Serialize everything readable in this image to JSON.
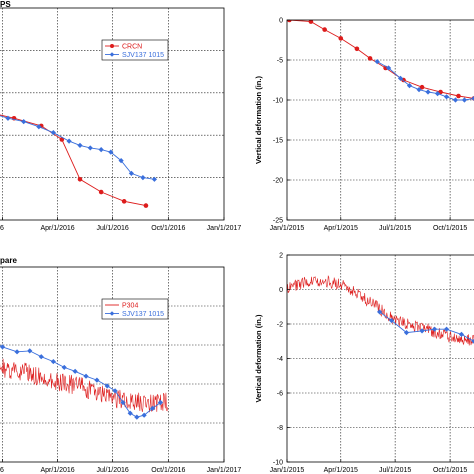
{
  "colors": {
    "red": "#dd1c1c",
    "blue": "#3a6fdc",
    "grid": "#1a1a1a",
    "axis": "#000000"
  },
  "chart_data": [
    {
      "id": "top-left",
      "type": "line",
      "panel_label": "PS",
      "ylabel": "",
      "xlabel": "",
      "xlim": [
        "2015-12-08",
        "2017-01-01"
      ],
      "ylim": [
        -25,
        0
      ],
      "xticks": [
        {
          "x": "2016-01-01",
          "label": "6"
        },
        {
          "x": "2016-04-01",
          "label": "Apr/1/2016"
        },
        {
          "x": "2016-07-01",
          "label": "Jul/1/2016"
        },
        {
          "x": "2016-10-01",
          "label": "Oct/1/2016"
        },
        {
          "x": "2017-01-01",
          "label": "Jan/1/2017"
        }
      ],
      "yticks": [
        0,
        -5,
        -10,
        -15,
        -20,
        -25
      ],
      "show_ytick_labels": false,
      "grid": true,
      "legend": {
        "placement": "top-center",
        "entries": [
          {
            "name": "CRCN",
            "color": "#dd1c1c",
            "marker": "circle"
          },
          {
            "name": "SJV137 1015",
            "color": "#3a6fdc",
            "marker": "diamond"
          }
        ]
      },
      "series": [
        {
          "name": "CRCN",
          "color": "#dd1c1c",
          "marker": "circle",
          "points": [
            [
              "2015-12-08",
              -12.3
            ],
            [
              "2016-01-20",
              -13.0
            ],
            [
              "2016-03-05",
              -13.9
            ],
            [
              "2016-04-08",
              -15.5
            ],
            [
              "2016-05-08",
              -20.2
            ],
            [
              "2016-06-12",
              -21.7
            ],
            [
              "2016-07-20",
              -22.8
            ],
            [
              "2016-08-25",
              -23.3
            ]
          ]
        },
        {
          "name": "SJV137 1015",
          "color": "#3a6fdc",
          "marker": "diamond",
          "points": [
            [
              "2015-12-08",
              -12.3
            ],
            [
              "2016-01-10",
              -13.0
            ],
            [
              "2016-02-05",
              -13.4
            ],
            [
              "2016-03-01",
              -14.0
            ],
            [
              "2016-03-25",
              -14.7
            ],
            [
              "2016-04-20",
              -15.7
            ],
            [
              "2016-05-08",
              -16.2
            ],
            [
              "2016-05-25",
              -16.5
            ],
            [
              "2016-06-12",
              -16.7
            ],
            [
              "2016-06-28",
              -17.0
            ],
            [
              "2016-07-15",
              -18.0
            ],
            [
              "2016-08-01",
              -19.5
            ],
            [
              "2016-08-20",
              -20.0
            ],
            [
              "2016-09-08",
              -20.2
            ]
          ]
        }
      ]
    },
    {
      "id": "top-right",
      "type": "line",
      "panel_label": "",
      "ylabel": "Vertical deformation (in.)",
      "xlabel": "",
      "xlim": [
        "2015-01-01",
        "2015-11-15"
      ],
      "ylim": [
        -25,
        0
      ],
      "xticks": [
        {
          "x": "2015-01-01",
          "label": "Jan/1/2015"
        },
        {
          "x": "2015-04-01",
          "label": "Apr/1/2015"
        },
        {
          "x": "2015-07-01",
          "label": "Jul/1/2015"
        },
        {
          "x": "2015-10-01",
          "label": "Oct/1/2015"
        }
      ],
      "yticks": [
        0,
        -5,
        -10,
        -15,
        -20,
        -25
      ],
      "show_ytick_labels": true,
      "grid": true,
      "legend": null,
      "series": [
        {
          "name": "",
          "color": "#dd1c1c",
          "marker": "circle",
          "points": [
            [
              "2015-01-05",
              0.0
            ],
            [
              "2015-02-10",
              -0.2
            ],
            [
              "2015-03-05",
              -1.2
            ],
            [
              "2015-04-01",
              -2.3
            ],
            [
              "2015-04-28",
              -3.6
            ],
            [
              "2015-05-20",
              -4.8
            ],
            [
              "2015-06-15",
              -6.0
            ],
            [
              "2015-07-15",
              -7.5
            ],
            [
              "2015-08-15",
              -8.4
            ],
            [
              "2015-09-15",
              -9.0
            ],
            [
              "2015-10-15",
              -9.5
            ],
            [
              "2015-11-10",
              -9.8
            ]
          ]
        },
        {
          "name": "",
          "color": "#3a6fdc",
          "marker": "diamond",
          "points": [
            [
              "2015-06-01",
              -5.2
            ],
            [
              "2015-06-20",
              -6.0
            ],
            [
              "2015-07-10",
              -7.3
            ],
            [
              "2015-07-25",
              -8.2
            ],
            [
              "2015-08-10",
              -8.7
            ],
            [
              "2015-08-25",
              -9.0
            ],
            [
              "2015-09-10",
              -9.2
            ],
            [
              "2015-09-25",
              -9.6
            ],
            [
              "2015-10-10",
              -10.0
            ],
            [
              "2015-10-25",
              -10.0
            ],
            [
              "2015-11-10",
              -9.8
            ]
          ]
        }
      ]
    },
    {
      "id": "bottom-left",
      "type": "line",
      "panel_label": "pare",
      "ylabel": "",
      "xlabel": "",
      "xlim": [
        "2015-12-08",
        "2017-01-01"
      ],
      "ylim": [
        -20,
        0
      ],
      "xticks": [
        {
          "x": "2016-01-01",
          "label": "6"
        },
        {
          "x": "2016-04-01",
          "label": "Apr/1/2016"
        },
        {
          "x": "2016-07-01",
          "label": "Jul/1/2016"
        },
        {
          "x": "2016-10-01",
          "label": "Oct/1/2016"
        },
        {
          "x": "2017-01-01",
          "label": "Jan/1/2017"
        }
      ],
      "yticks": [
        0,
        -4,
        -8,
        -12,
        -16,
        -20
      ],
      "show_ytick_labels": false,
      "grid": true,
      "legend": {
        "placement": "top-center",
        "entries": [
          {
            "name": "P304",
            "color": "#dd1c1c",
            "marker": "none"
          },
          {
            "name": "SJV137 1015",
            "color": "#3a6fdc",
            "marker": "diamond"
          }
        ]
      },
      "series": [
        {
          "name": "P304",
          "color": "#dd1c1c",
          "marker": "none",
          "noisy": true,
          "noise_amplitude": 1.0,
          "samples_per_day": 1,
          "points": [
            [
              "2015-12-08",
              -10.0
            ],
            [
              "2016-01-15",
              -10.5
            ],
            [
              "2016-02-20",
              -11.0
            ],
            [
              "2016-04-01",
              -11.7
            ],
            [
              "2016-05-10",
              -12.3
            ],
            [
              "2016-06-20",
              -13.3
            ],
            [
              "2016-08-01",
              -13.8
            ],
            [
              "2016-09-15",
              -14.0
            ],
            [
              "2016-10-01",
              -13.8
            ]
          ]
        },
        {
          "name": "SJV137 1015",
          "color": "#3a6fdc",
          "marker": "diamond",
          "points": [
            [
              "2015-12-08",
              -7.5
            ],
            [
              "2016-01-01",
              -8.2
            ],
            [
              "2016-01-25",
              -8.7
            ],
            [
              "2016-02-15",
              -8.6
            ],
            [
              "2016-03-05",
              -9.2
            ],
            [
              "2016-03-25",
              -9.7
            ],
            [
              "2016-04-12",
              -10.3
            ],
            [
              "2016-04-30",
              -10.7
            ],
            [
              "2016-05-18",
              -11.2
            ],
            [
              "2016-06-05",
              -11.6
            ],
            [
              "2016-06-22",
              -12.2
            ],
            [
              "2016-07-05",
              -12.7
            ],
            [
              "2016-07-18",
              -13.9
            ],
            [
              "2016-07-30",
              -15.0
            ],
            [
              "2016-08-10",
              -15.4
            ],
            [
              "2016-08-22",
              -15.2
            ],
            [
              "2016-09-05",
              -14.5
            ],
            [
              "2016-09-18",
              -13.9
            ]
          ]
        }
      ]
    },
    {
      "id": "bottom-right",
      "type": "line",
      "panel_label": "",
      "ylabel": "Vertical deformation (in.)",
      "xlabel": "",
      "xlim": [
        "2015-01-01",
        "2015-11-15"
      ],
      "ylim": [
        -10,
        2
      ],
      "xticks": [
        {
          "x": "2015-01-01",
          "label": "Jan/1/2015"
        },
        {
          "x": "2015-04-01",
          "label": "Apr/1/2015"
        },
        {
          "x": "2015-07-01",
          "label": "Jul/1/2015"
        },
        {
          "x": "2015-10-01",
          "label": "Oct/1/2015"
        }
      ],
      "yticks": [
        2,
        0,
        -2,
        -4,
        -6,
        -8,
        -10
      ],
      "show_ytick_labels": true,
      "grid": true,
      "legend": null,
      "series": [
        {
          "name": "",
          "color": "#dd1c1c",
          "marker": "none",
          "noisy": true,
          "noise_amplitude": 0.35,
          "samples_per_day": 1,
          "points": [
            [
              "2015-01-01",
              0.1
            ],
            [
              "2015-02-01",
              0.4
            ],
            [
              "2015-03-01",
              0.5
            ],
            [
              "2015-04-01",
              0.3
            ],
            [
              "2015-05-01",
              -0.3
            ],
            [
              "2015-06-01",
              -1.0
            ],
            [
              "2015-07-01",
              -1.8
            ],
            [
              "2015-08-01",
              -2.1
            ],
            [
              "2015-09-01",
              -2.4
            ],
            [
              "2015-10-01",
              -2.8
            ],
            [
              "2015-11-15",
              -3.0
            ]
          ]
        },
        {
          "name": "",
          "color": "#3a6fdc",
          "marker": "diamond",
          "points": [
            [
              "2015-06-05",
              -1.3
            ],
            [
              "2015-06-25",
              -1.8
            ],
            [
              "2015-07-20",
              -2.5
            ],
            [
              "2015-08-15",
              -2.4
            ],
            [
              "2015-09-05",
              -2.3
            ],
            [
              "2015-09-25",
              -2.3
            ],
            [
              "2015-10-20",
              -2.6
            ],
            [
              "2015-11-10",
              -3.0
            ]
          ]
        }
      ]
    }
  ]
}
